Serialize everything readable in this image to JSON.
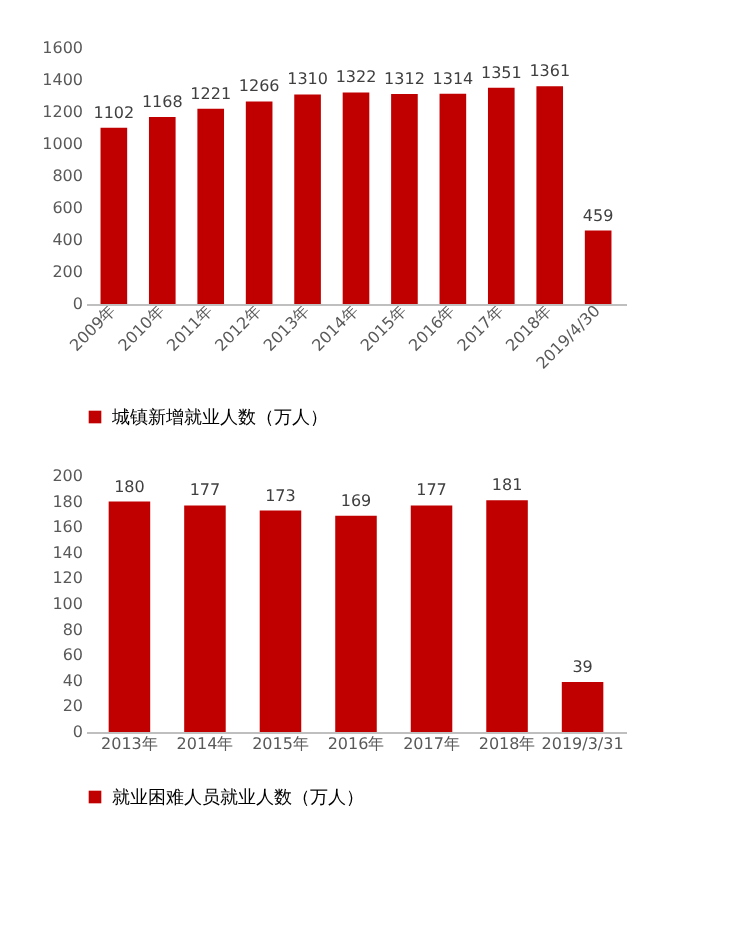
{
  "chart_data": [
    {
      "type": "bar",
      "categories": [
        "2009年",
        "2010年",
        "2011年",
        "2012年",
        "2013年",
        "2014年",
        "2015年",
        "2016年",
        "2017年",
        "2018年",
        "2019/4/30"
      ],
      "series": [
        {
          "name": "城镇新增就业人数（万人）",
          "color": "#c00000",
          "values": [
            1102,
            1168,
            1221,
            1266,
            1310,
            1322,
            1312,
            1314,
            1351,
            1361,
            459
          ]
        }
      ],
      "ylim": [
        0,
        1600
      ],
      "yticks": [
        0,
        200,
        400,
        600,
        800,
        1000,
        1200,
        1400,
        1600
      ],
      "grid": false,
      "legend": "bottom",
      "data_labels": true
    },
    {
      "type": "bar",
      "categories": [
        "2013年",
        "2014年",
        "2015年",
        "2016年",
        "2017年",
        "2018年",
        "2019/3/31"
      ],
      "series": [
        {
          "name": "就业困难人员就业人数（万人）",
          "color": "#c00000",
          "values": [
            180,
            177,
            173,
            169,
            177,
            181,
            39
          ]
        }
      ],
      "ylim": [
        0,
        200
      ],
      "yticks": [
        0,
        20,
        40,
        60,
        80,
        100,
        120,
        140,
        160,
        180,
        200
      ],
      "grid": false,
      "legend": "bottom",
      "data_labels": true
    }
  ]
}
